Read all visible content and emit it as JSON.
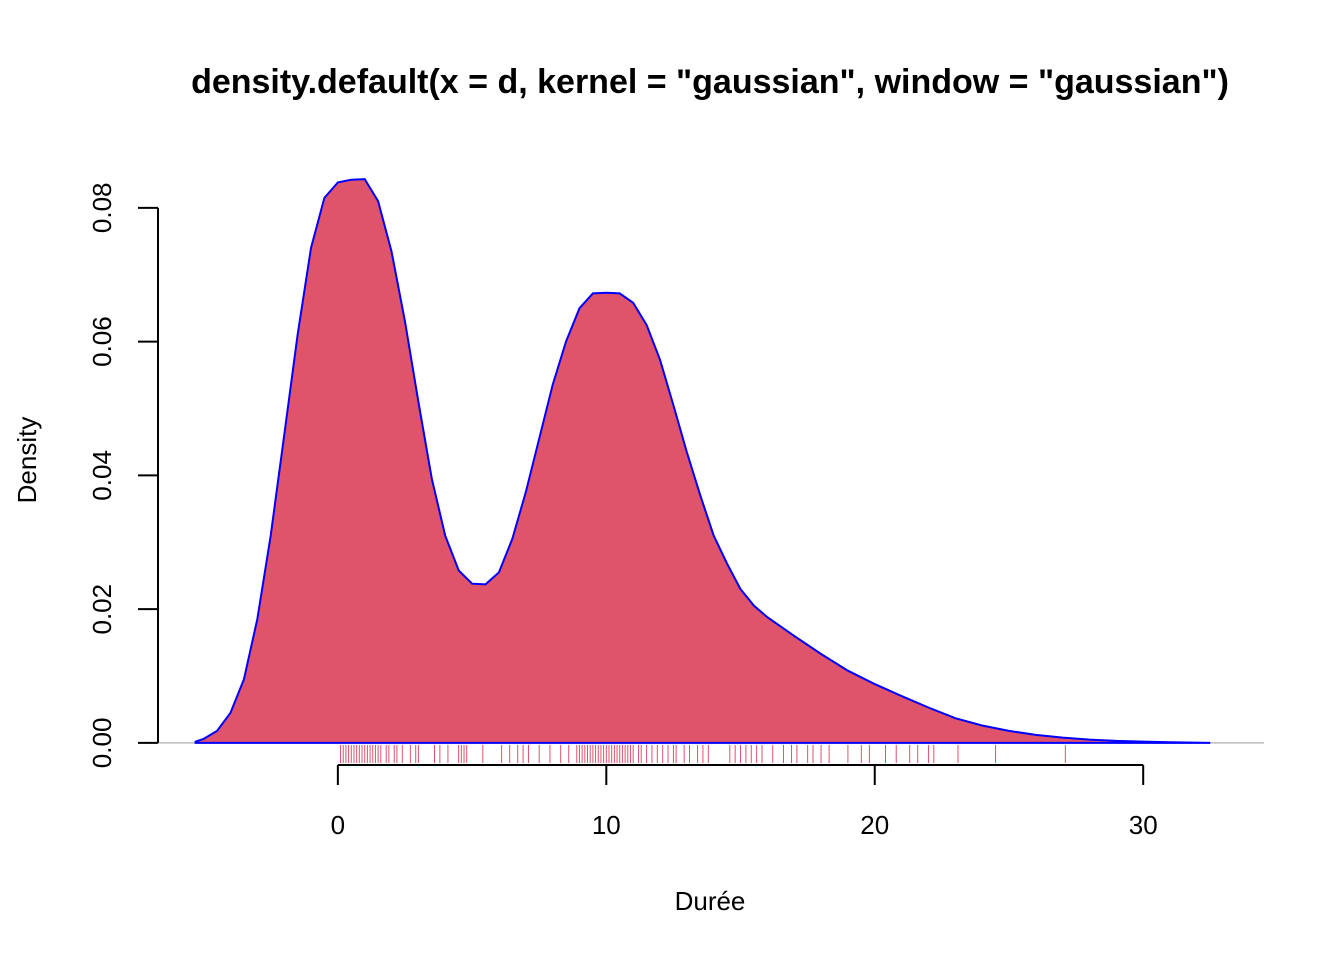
{
  "chart_data": {
    "type": "area",
    "title": "density.default(x = d, kernel = \"gaussian\", window = \"gaussian\")",
    "xlabel": "Durée",
    "ylabel": "Density",
    "xlim": [
      -6.7,
      34.5
    ],
    "ylim": [
      -0.0033,
      0.0876
    ],
    "x_ticks": [
      0,
      10,
      20,
      30
    ],
    "x_tick_labels": [
      "0",
      "10",
      "20",
      "30"
    ],
    "y_ticks": [
      0,
      0.02,
      0.04,
      0.06,
      0.08
    ],
    "y_tick_labels": [
      "0.00",
      "0.02",
      "0.04",
      "0.06",
      "0.08"
    ],
    "grid": false,
    "legend": "none",
    "fill_color": "#DF536B",
    "line_color": "#0000FF",
    "rug_color": "#DF536B",
    "baseline_color": "#BEBEBE",
    "series": [
      {
        "x": [
          -5.3,
          -5.0,
          -4.5,
          -4.0,
          -3.5,
          -3.0,
          -2.5,
          -2.0,
          -1.5,
          -1.0,
          -0.5,
          0.0,
          0.5,
          1.0,
          1.5,
          2.0,
          2.5,
          3.0,
          3.5,
          4.0,
          4.5,
          5.0,
          5.5,
          6.0,
          6.5,
          7.0,
          7.5,
          8.0,
          8.5,
          9.0,
          9.5,
          10.0,
          10.5,
          11.0,
          11.5,
          12.0,
          12.5,
          13.0,
          13.5,
          14.0,
          14.5,
          15.0,
          15.5,
          16.0,
          17.0,
          18.0,
          19.0,
          20.0,
          21.0,
          22.0,
          23.0,
          24.0,
          25.0,
          26.0,
          27.0,
          28.0,
          29.0,
          30.0,
          31.0,
          32.5
        ],
        "y": [
          0.0002,
          0.0006,
          0.0018,
          0.0045,
          0.0095,
          0.0185,
          0.031,
          0.046,
          0.061,
          0.074,
          0.0815,
          0.0838,
          0.0842,
          0.0843,
          0.081,
          0.0735,
          0.063,
          0.051,
          0.0395,
          0.031,
          0.0258,
          0.0238,
          0.0237,
          0.0255,
          0.0305,
          0.0375,
          0.0455,
          0.0535,
          0.06,
          0.065,
          0.0672,
          0.0673,
          0.0672,
          0.0658,
          0.0625,
          0.0573,
          0.0505,
          0.0435,
          0.037,
          0.031,
          0.0268,
          0.023,
          0.0205,
          0.0188,
          0.016,
          0.0133,
          0.0108,
          0.0088,
          0.007,
          0.0053,
          0.0037,
          0.0026,
          0.0018,
          0.0012,
          0.0008,
          0.0005,
          0.0003,
          0.0002,
          0.0001,
          0.0
        ]
      }
    ],
    "rug": [
      0.1,
      0.2,
      0.3,
      0.4,
      0.5,
      0.6,
      0.7,
      0.8,
      0.9,
      1.0,
      1.1,
      1.2,
      1.3,
      1.4,
      1.5,
      1.6,
      1.8,
      1.9,
      2.1,
      2.2,
      2.4,
      2.7,
      2.9,
      3.0,
      3.6,
      3.8,
      4.1,
      4.5,
      4.6,
      4.7,
      4.8,
      5.4,
      6.1,
      6.4,
      6.7,
      6.9,
      7.1,
      7.5,
      7.9,
      8.3,
      8.6,
      8.9,
      9.0,
      9.1,
      9.2,
      9.3,
      9.4,
      9.5,
      9.6,
      9.7,
      9.8,
      9.9,
      10.0,
      10.1,
      10.2,
      10.3,
      10.4,
      10.5,
      10.6,
      10.7,
      10.8,
      10.9,
      11.0,
      11.2,
      11.3,
      11.5,
      11.7,
      11.9,
      12.1,
      12.3,
      12.5,
      12.6,
      12.9,
      13.1,
      13.4,
      13.6,
      13.8,
      14.6,
      14.8,
      15.0,
      15.2,
      15.4,
      15.6,
      15.8,
      16.2,
      16.6,
      16.9,
      17.1,
      17.5,
      17.7,
      18.0,
      18.3,
      19.0,
      19.5,
      19.8,
      20.4,
      20.8,
      21.3,
      21.6,
      22.0,
      22.2,
      23.1,
      24.5,
      27.1
    ]
  }
}
